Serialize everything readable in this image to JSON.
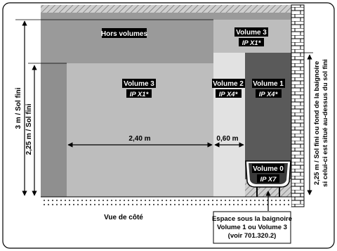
{
  "zones": {
    "hors_volumes": {
      "label": "Hors volumes"
    },
    "volume3_top": {
      "label": "Volume 3",
      "ip": "IP X1*"
    },
    "volume3_main": {
      "label": "Volume 3",
      "ip": "IP X1*"
    },
    "volume2": {
      "label": "Volume 2",
      "ip": "IP X4*"
    },
    "volume1": {
      "label": "Volume 1",
      "ip": "IP X4*"
    },
    "volume0": {
      "label": "Volume 0",
      "ip": "IP X7"
    }
  },
  "dimensions": {
    "height_3m": "3 m / Sol fini",
    "height_225m": "2,25 m / Sol fini",
    "width_240": "2,40 m",
    "width_060": "0,60 m",
    "right_note_line1": "2,25 m / Sol fini ou fond de la baignoire",
    "right_note_line2": "si celui-ci est situé au-dessus du sol fini"
  },
  "view_label": "Vue de côté",
  "callout": {
    "line1": "Espace sous la baignoire",
    "line2": "Volume 1 ou Volume 3",
    "line3": "(voir 701.320.2)"
  },
  "colors": {
    "hors_volumes": "#9a9a9a",
    "volume3": "#bdbdbd",
    "volume2": "#e2e2e2",
    "volume1": "#5a5a5a",
    "wall_left": "#8f8f8f",
    "label_bg": "#000000",
    "label_text": "#ffffff"
  }
}
